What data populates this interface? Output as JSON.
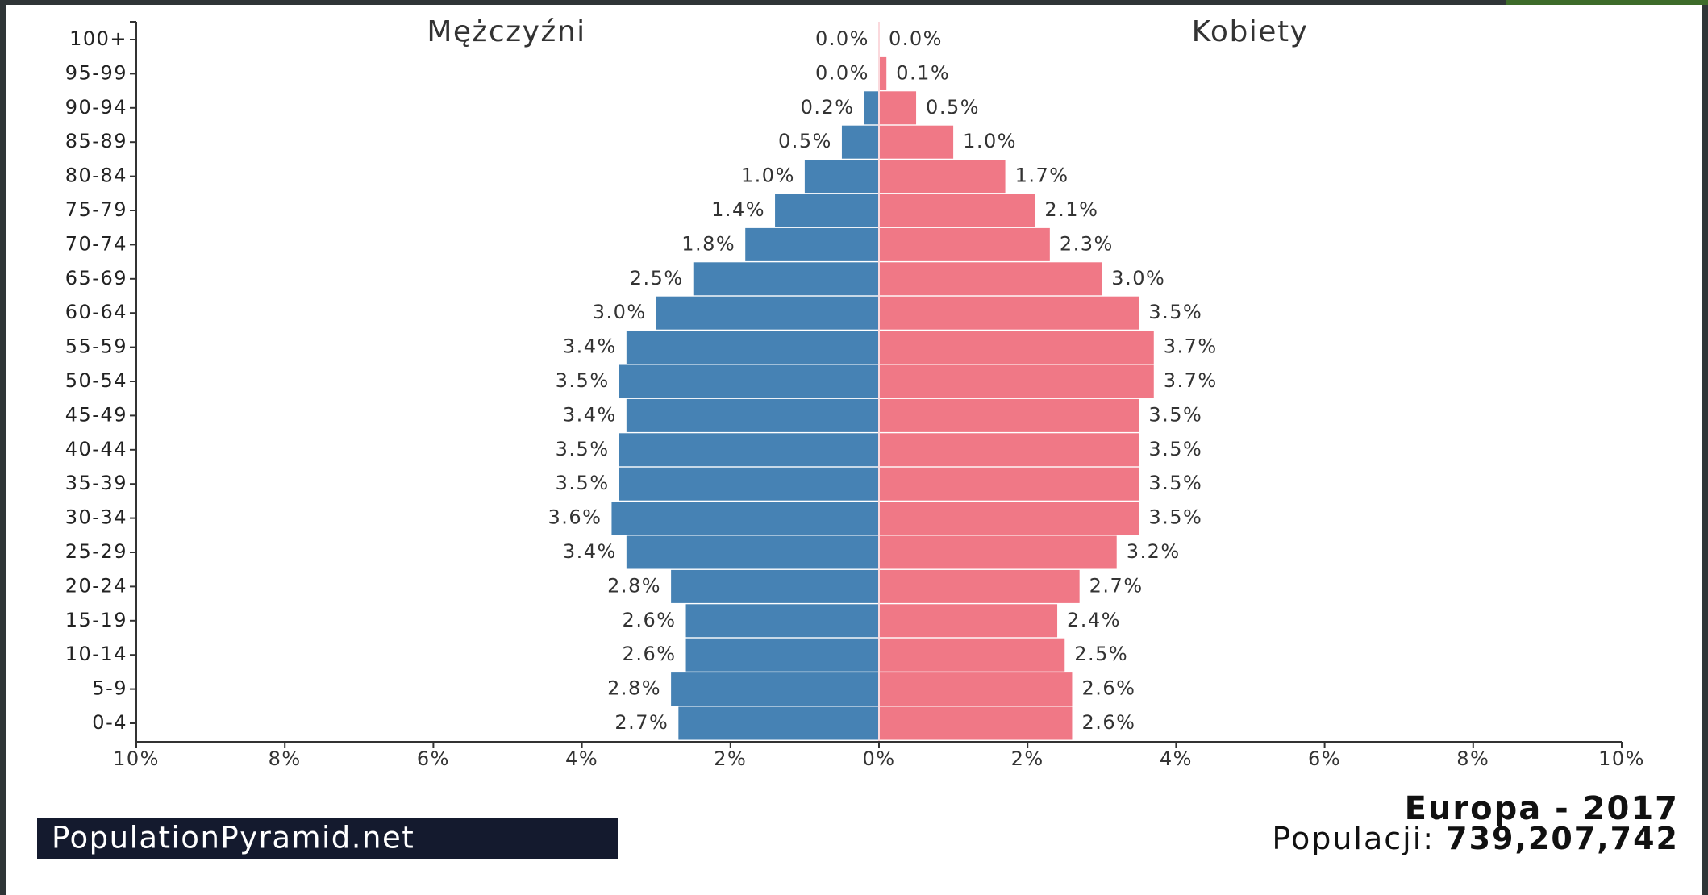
{
  "chart_data": {
    "type": "pyramid",
    "categories": [
      "100+",
      "95-99",
      "90-94",
      "85-89",
      "80-84",
      "75-79",
      "70-74",
      "65-69",
      "60-64",
      "55-59",
      "50-54",
      "45-49",
      "40-44",
      "35-39",
      "30-34",
      "25-29",
      "20-24",
      "15-19",
      "10-14",
      "5-9",
      "0-4"
    ],
    "series": [
      {
        "name": "Mężczyźni",
        "color": "#4682b4",
        "values": [
          0.0,
          0.0,
          0.2,
          0.5,
          1.0,
          1.4,
          1.8,
          2.5,
          3.0,
          3.4,
          3.5,
          3.4,
          3.5,
          3.5,
          3.6,
          3.4,
          2.8,
          2.6,
          2.6,
          2.8,
          2.7
        ],
        "value_labels": [
          "0.0%",
          "0.0%",
          "0.2%",
          "0.5%",
          "1.0%",
          "1.4%",
          "1.8%",
          "2.5%",
          "3.0%",
          "3.4%",
          "3.5%",
          "3.4%",
          "3.5%",
          "3.5%",
          "3.6%",
          "3.4%",
          "2.8%",
          "2.6%",
          "2.6%",
          "2.8%",
          "2.7%"
        ]
      },
      {
        "name": "Kobiety",
        "color": "#f07886",
        "values": [
          0.0,
          0.1,
          0.5,
          1.0,
          1.7,
          2.1,
          2.3,
          3.0,
          3.5,
          3.7,
          3.7,
          3.5,
          3.5,
          3.5,
          3.5,
          3.2,
          2.7,
          2.4,
          2.5,
          2.6,
          2.6
        ],
        "value_labels": [
          "0.0%",
          "0.1%",
          "0.5%",
          "1.0%",
          "1.7%",
          "2.1%",
          "2.3%",
          "3.0%",
          "3.5%",
          "3.7%",
          "3.7%",
          "3.5%",
          "3.5%",
          "3.5%",
          "3.5%",
          "3.2%",
          "2.7%",
          "2.4%",
          "2.5%",
          "2.6%",
          "2.6%"
        ]
      }
    ],
    "xlim": [
      0,
      10
    ],
    "xticks": [
      {
        "value": 0,
        "label": "0%"
      },
      {
        "value": 2,
        "label": "2%"
      },
      {
        "value": 4,
        "label": "4%"
      },
      {
        "value": 6,
        "label": "6%"
      },
      {
        "value": 8,
        "label": "8%"
      },
      {
        "value": 10,
        "label": "10%"
      }
    ],
    "source": "PopulationPyramid.net",
    "title": "Europa - 2017",
    "population_label": "Populacji: ",
    "population_value": "739,207,742"
  }
}
